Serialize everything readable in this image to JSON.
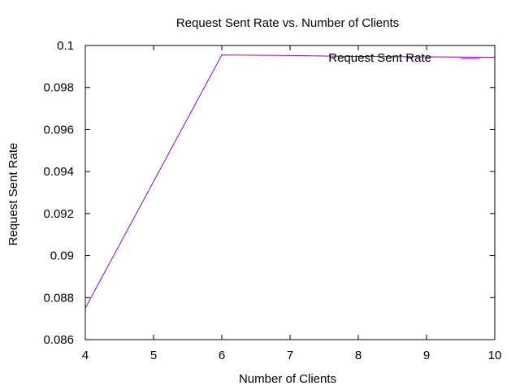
{
  "chart_data": {
    "type": "line",
    "title": "Request Sent Rate vs. Number of Clients",
    "xlabel": "Number of Clients",
    "ylabel": "Request Sent Rate",
    "xlim": [
      4,
      10
    ],
    "ylim": [
      0.086,
      0.1
    ],
    "x_ticks": [
      "4",
      "5",
      "6",
      "7",
      "8",
      "9",
      "10"
    ],
    "y_ticks": [
      "0.086",
      "0.088",
      "0.09",
      "0.092",
      "0.094",
      "0.096",
      "0.098",
      "0.1"
    ],
    "grid": false,
    "legend_position": "top-right",
    "series": [
      {
        "name": "Request Sent Rate",
        "color": "#9400d3",
        "x": [
          4,
          6,
          7,
          8,
          9,
          10
        ],
        "y": [
          0.0875,
          0.09955,
          0.09952,
          0.09948,
          0.09946,
          0.09944
        ]
      }
    ]
  }
}
